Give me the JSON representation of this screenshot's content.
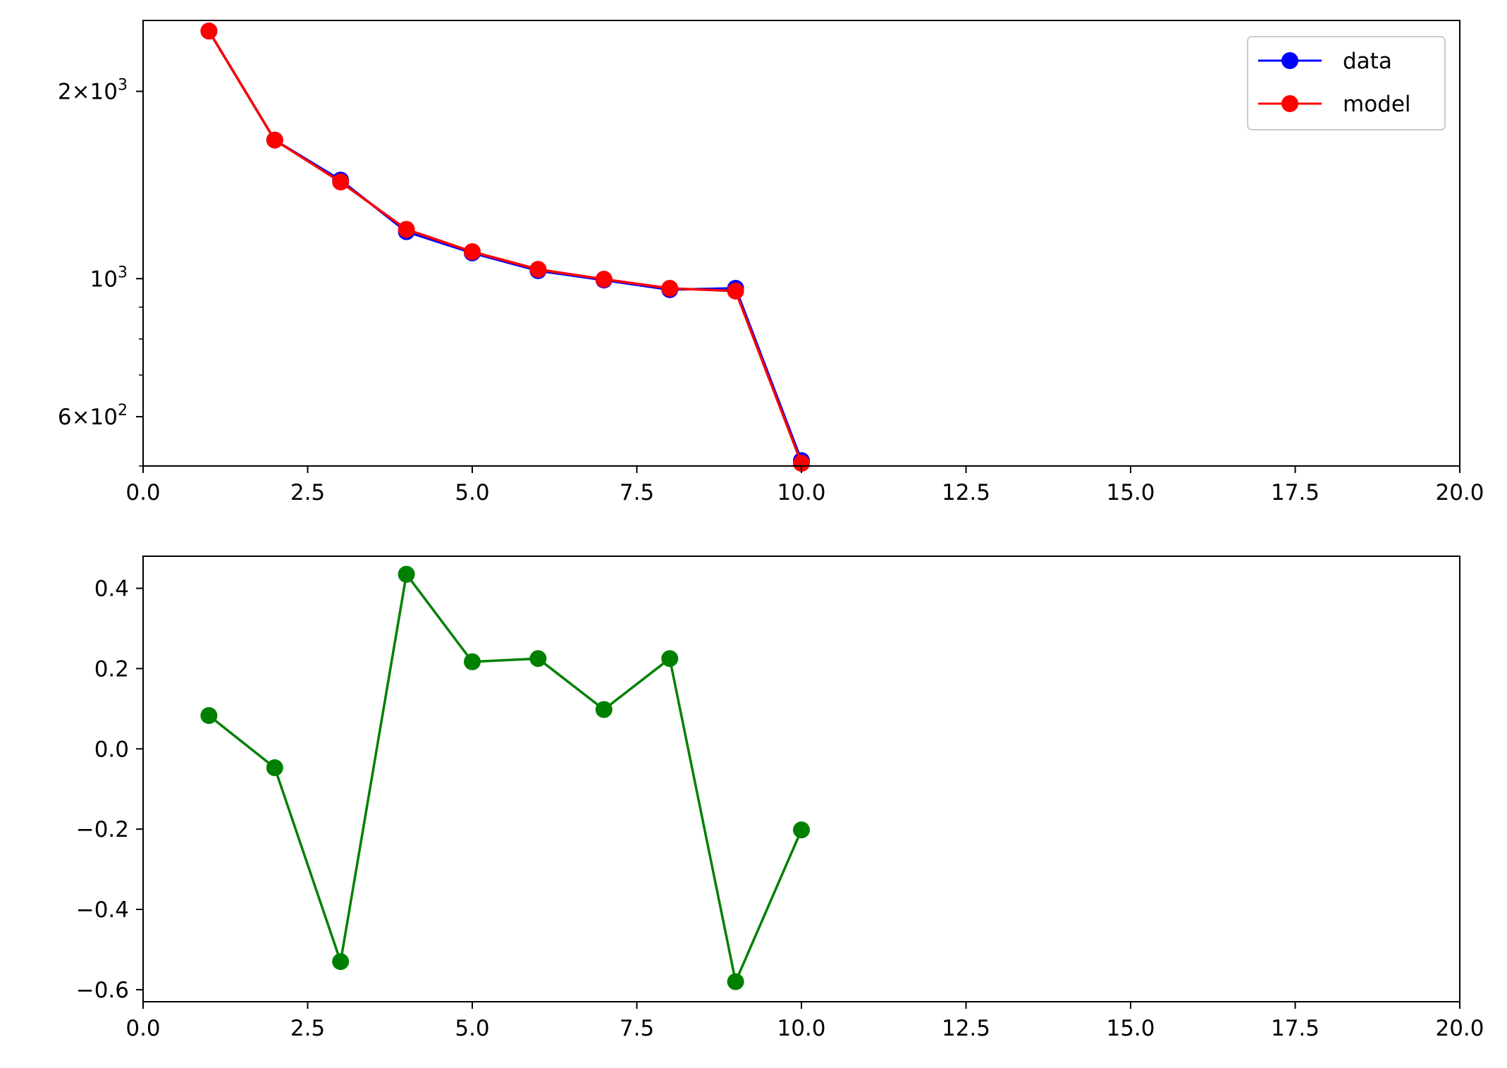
{
  "chart_data": [
    {
      "type": "line",
      "title": "",
      "xlabel": "",
      "ylabel": "",
      "xlim": [
        0,
        20
      ],
      "y_scale": "log",
      "ylim": [
        500,
        2600
      ],
      "grid": false,
      "legend": {
        "placement": "upper right"
      },
      "x_ticks": [
        0,
        2.5,
        5,
        7.5,
        10,
        12.5,
        15,
        17.5,
        20
      ],
      "x_tick_labels": [
        "0.0",
        "2.5",
        "5.0",
        "7.5",
        "10.0",
        "12.5",
        "15.0",
        "17.5",
        "20.0"
      ],
      "y_major_ticks": [
        600,
        1000,
        2000
      ],
      "y_tick_labels": [
        {
          "mantissa": "6",
          "times": "×",
          "base": "10",
          "exp": "2"
        },
        {
          "mantissa": "",
          "times": "",
          "base": "10",
          "exp": "3"
        },
        {
          "mantissa": "2",
          "times": "×",
          "base": "10",
          "exp": "3"
        }
      ],
      "y_minor_ticks": [
        500,
        700,
        800,
        900
      ],
      "x": [
        1,
        2,
        3,
        4,
        5,
        6,
        7,
        8,
        9,
        10
      ],
      "series": [
        {
          "name": "data",
          "color": "#0000ff",
          "values": [
            2500,
            1670,
            1440,
            1190,
            1100,
            1030,
            995,
            960,
            965,
            510
          ]
        },
        {
          "name": "model",
          "color": "#ff0000",
          "values": [
            2500,
            1670,
            1430,
            1200,
            1105,
            1035,
            998,
            965,
            955,
            505
          ]
        }
      ]
    },
    {
      "type": "line",
      "title": "",
      "xlabel": "",
      "ylabel": "",
      "xlim": [
        0,
        20
      ],
      "ylim": [
        -0.63,
        0.48
      ],
      "grid": false,
      "x_ticks": [
        0,
        2.5,
        5,
        7.5,
        10,
        12.5,
        15,
        17.5,
        20
      ],
      "x_tick_labels": [
        "0.0",
        "2.5",
        "5.0",
        "7.5",
        "10.0",
        "12.5",
        "15.0",
        "17.5",
        "20.0"
      ],
      "y_ticks": [
        -0.6,
        -0.4,
        -0.2,
        0.0,
        0.2,
        0.4
      ],
      "y_tick_labels": [
        "−0.6",
        "−0.4",
        "−0.2",
        "0.0",
        "0.2",
        "0.4"
      ],
      "x": [
        1,
        2,
        3,
        4,
        5,
        6,
        7,
        8,
        9,
        10
      ],
      "series": [
        {
          "color": "#008000",
          "values": [
            0.083,
            -0.047,
            -0.53,
            0.435,
            0.217,
            0.225,
            0.098,
            0.225,
            -0.58,
            -0.202
          ]
        }
      ]
    }
  ]
}
